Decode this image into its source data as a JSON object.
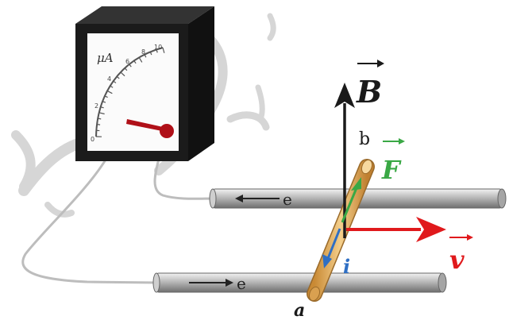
{
  "meter": {
    "unit": "μA",
    "scale": [
      "0",
      "2",
      "4",
      "6",
      "8",
      "10"
    ]
  },
  "labels": {
    "field": "B",
    "force": "F",
    "velocity": "v",
    "current": "i",
    "end_b": "b",
    "end_a": "a",
    "electron_top": "e",
    "electron_bottom": "e"
  },
  "colors": {
    "field": "#1a1a1a",
    "force": "#3aa845",
    "velocity": "#e0191c",
    "current": "#2f6fc4",
    "needle": "#b01018",
    "rod": "#e8b86a",
    "rail": "#8f8f8f",
    "watermark": "#d4d4d4"
  }
}
